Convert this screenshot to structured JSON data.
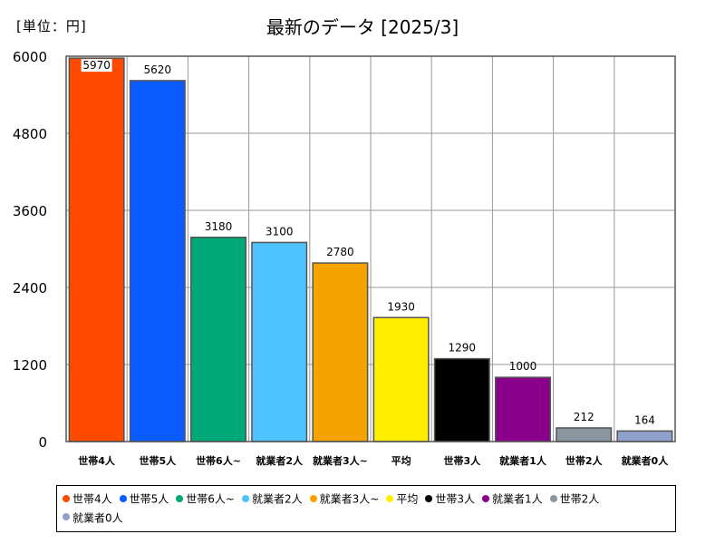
{
  "unit_label": "[単位：円]",
  "chart_data": {
    "type": "bar",
    "title": "最新のデータ [2025/3]",
    "categories": [
      "世帯4人",
      "世帯5人",
      "世帯6人~",
      "就業者2人",
      "就業者3人~",
      "平均",
      "世帯3人",
      "就業者1人",
      "世帯2人",
      "就業者0人"
    ],
    "values": [
      5970,
      5620,
      3180,
      3100,
      2780,
      1930,
      1290,
      1000,
      212,
      164
    ],
    "colors": [
      "#ff4a00",
      "#0a5cff",
      "#00a878",
      "#4fc3ff",
      "#f4a300",
      "#ffee00",
      "#000000",
      "#8b008b",
      "#8a96a0",
      "#8fa0cc"
    ],
    "ylim": [
      0,
      6000
    ],
    "yticks": [
      0,
      1200,
      2400,
      3600,
      4800,
      6000
    ],
    "grid": true,
    "legend_position": "bottom"
  }
}
